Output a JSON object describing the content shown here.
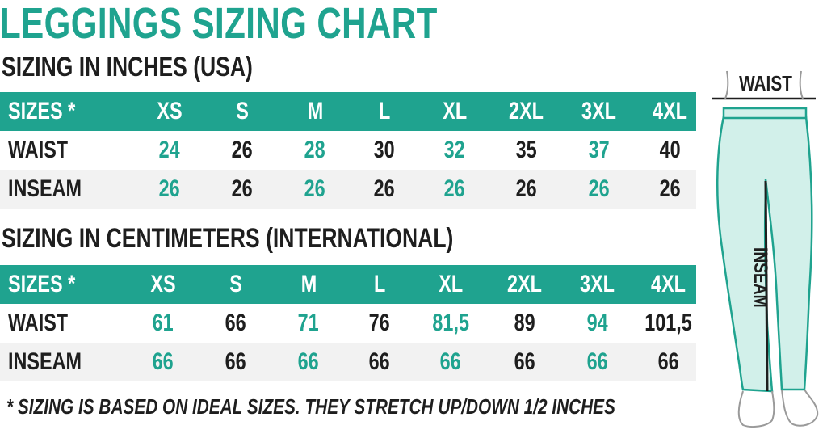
{
  "title": "LEGGINGS SIZING CHART",
  "inches": {
    "heading": "SIZING IN INCHES (USA)",
    "header_label": "SIZES *",
    "sizes": [
      "XS",
      "S",
      "M",
      "L",
      "XL",
      "2XL",
      "3XL",
      "4XL"
    ],
    "rows": [
      {
        "label": "WAIST",
        "values": [
          "24",
          "26",
          "28",
          "30",
          "32",
          "35",
          "37",
          "40"
        ]
      },
      {
        "label": "INSEAM",
        "values": [
          "26",
          "26",
          "26",
          "26",
          "26",
          "26",
          "26",
          "26"
        ]
      }
    ]
  },
  "centimeters": {
    "heading": "SIZING IN CENTIMETERS (INTERNATIONAL)",
    "header_label": "SIZES *",
    "sizes": [
      "XS",
      "S",
      "M",
      "L",
      "XL",
      "2XL",
      "3XL",
      "4XL"
    ],
    "rows": [
      {
        "label": "WAIST",
        "values": [
          "61",
          "66",
          "71",
          "76",
          "81,5",
          "89",
          "94",
          "101,5"
        ]
      },
      {
        "label": "INSEAM",
        "values": [
          "66",
          "66",
          "66",
          "66",
          "66",
          "66",
          "66",
          "66"
        ]
      }
    ]
  },
  "footnote": "* SIZING IS BASED ON IDEAL SIZES. THEY STRETCH UP/DOWN 1/2 INCHES",
  "figure": {
    "waist_label": "WAIST",
    "inseam_label": "INSEAM"
  },
  "colors": {
    "accent": "#1fa38f",
    "text": "#1e1e1e",
    "alt_row": "#f2f2f2",
    "legging_fill": "#d2f0ea"
  }
}
